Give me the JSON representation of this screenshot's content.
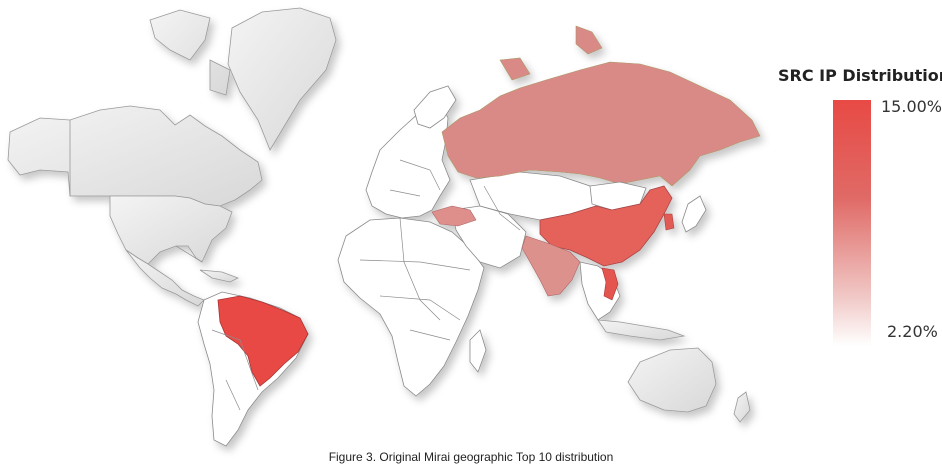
{
  "legend": {
    "title": "SRC IP Distribution",
    "max_label": "15.00%",
    "min_label": "2.20%",
    "max_value": 15.0,
    "min_value": 2.2,
    "color_high": "#e84a45",
    "color_low": "#ffffff"
  },
  "highlighted_countries": [
    {
      "name": "Brazil",
      "color": "#e84a45"
    },
    {
      "name": "China",
      "color": "#e5625a"
    },
    {
      "name": "Vietnam",
      "color": "#e5554f"
    },
    {
      "name": "Russia",
      "color": "#d98a87"
    },
    {
      "name": "India",
      "color": "#dc918d"
    },
    {
      "name": "Turkey",
      "color": "#de8e8b"
    },
    {
      "name": "South Korea",
      "color": "#e15a53"
    }
  ],
  "caption": "Figure 3. Original Mirai geographic Top 10 distribution"
}
